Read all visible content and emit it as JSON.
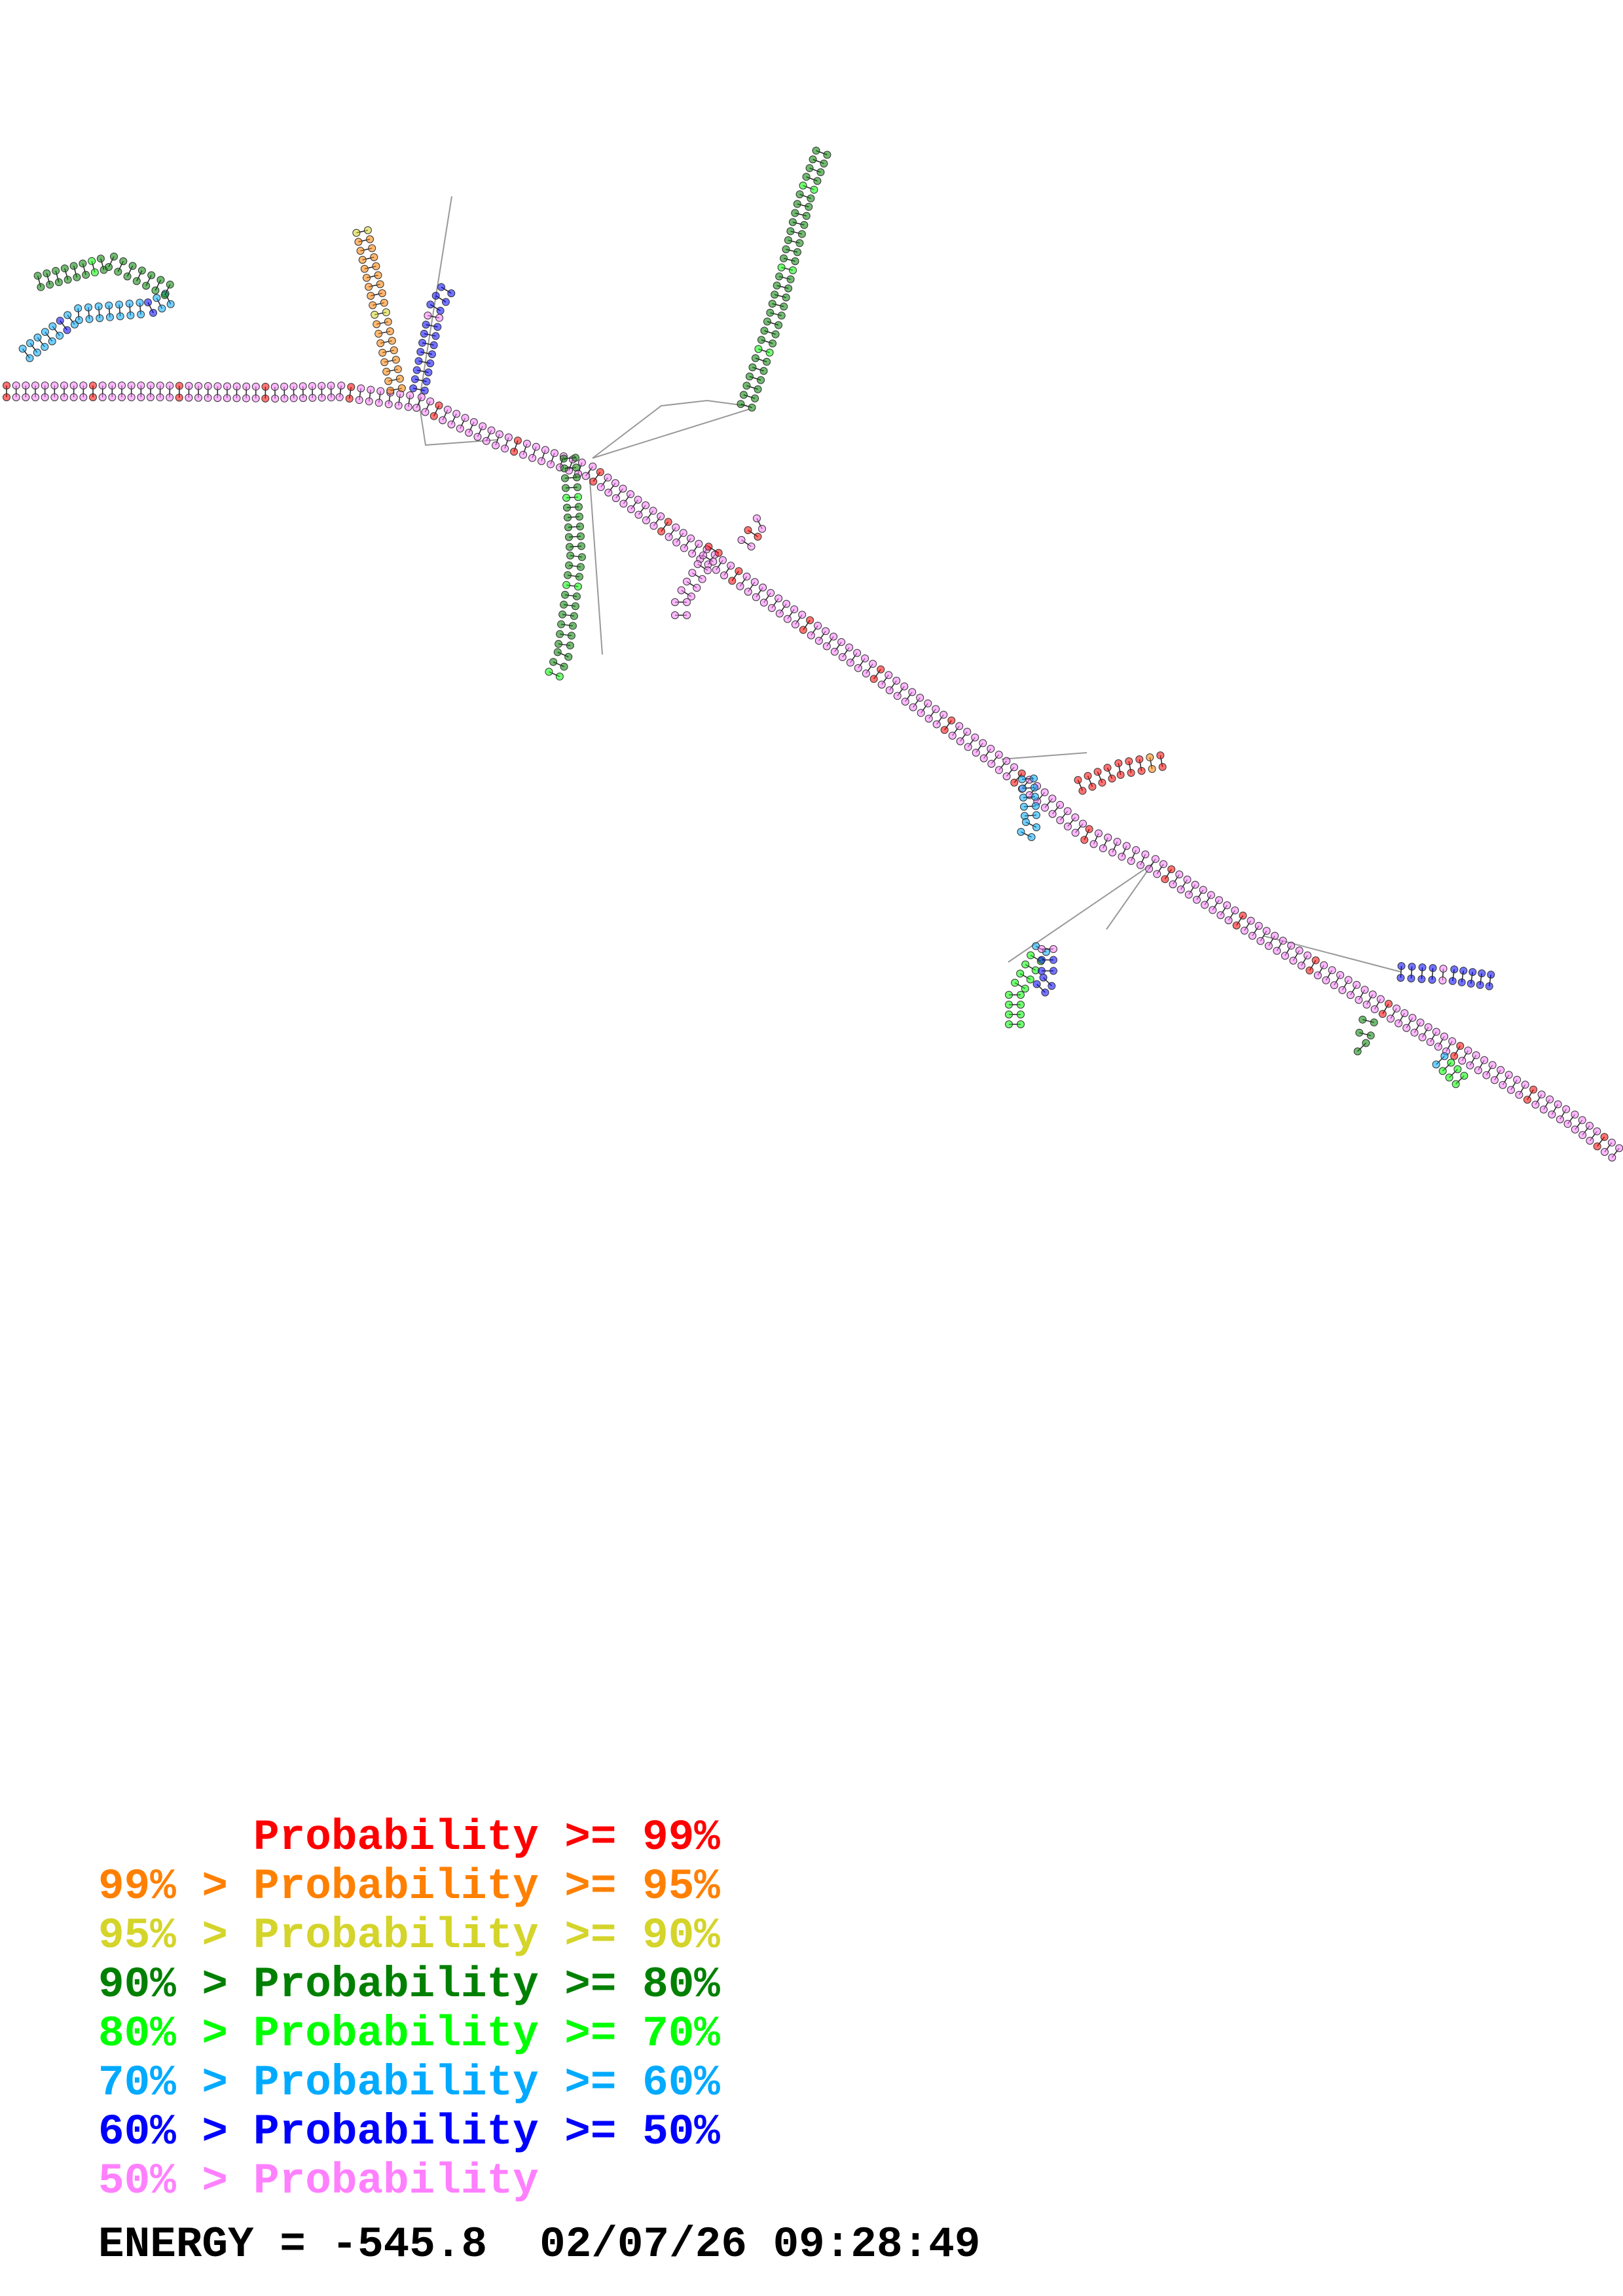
{
  "legend": [
    {
      "prefix": "",
      "label": "Probability >= 99%",
      "color": "#ff0000"
    },
    {
      "prefix": "99% >",
      "label": "Probability >= 95%",
      "color": "#ff8000"
    },
    {
      "prefix": "95% >",
      "label": "Probability >= 90%",
      "color": "#d4d42a"
    },
    {
      "prefix": "90% >",
      "label": "Probability >= 80%",
      "color": "#008000"
    },
    {
      "prefix": "80% >",
      "label": "Probability >= 70%",
      "color": "#00ff00"
    },
    {
      "prefix": "70% >",
      "label": "Probability >= 60%",
      "color": "#00aaff"
    },
    {
      "prefix": "60% >",
      "label": "Probability >= 50%",
      "color": "#0000ff"
    },
    {
      "prefix": "50% >",
      "label": "Probability",
      "color": "#ff80ff"
    }
  ],
  "footer": {
    "energy": "ENERGY = -545.8",
    "timestamp": "02/07/26 09:28:49"
  }
}
